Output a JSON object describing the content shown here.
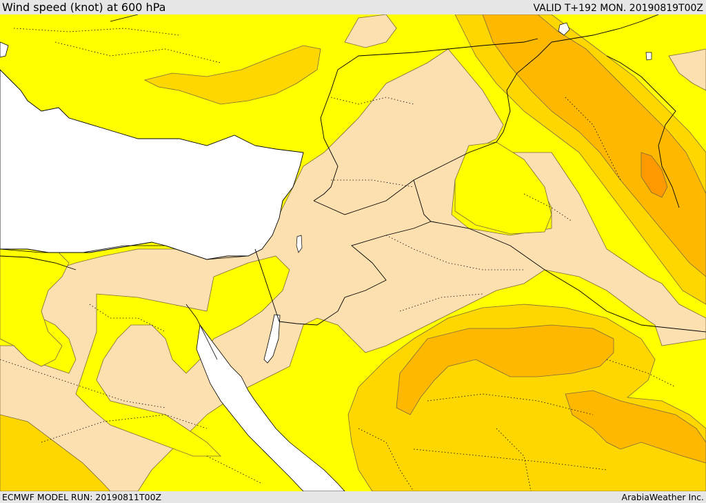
{
  "header": {
    "title": "Wind speed (knot) at 600 hPa",
    "valid": "VALID T+192 MON. 20190819T00Z"
  },
  "footer": {
    "model_run": "ECMWF MODEL RUN: 20190811T00Z",
    "brand": "ArabiaWeather Inc."
  },
  "colors": {
    "sea": "#ffffff",
    "band_lowest": "#fde0b0",
    "band_low": "#ffff00",
    "band_mid": "#ffd700",
    "band_high": "#ffb800",
    "band_highest": "#ff9900",
    "contour_line": "#7a6a3a",
    "border_line": "#000000",
    "admin_line": "#000000"
  },
  "icons": [
    "wind-speed-contours",
    "coastline",
    "country-borders",
    "admin-borders-dotted"
  ]
}
